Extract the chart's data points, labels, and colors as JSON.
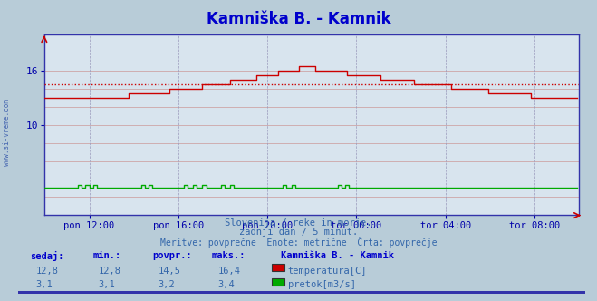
{
  "title": "Kamniška B. - Kamnik",
  "title_color": "#0000cc",
  "fig_bg_color": "#b8ccd8",
  "plot_bg_color": "#d8e4ee",
  "grid_color_h": "#cc9999",
  "grid_color_v": "#9999bb",
  "xlim": [
    0,
    288
  ],
  "ylim": [
    0,
    20
  ],
  "ytick_vals": [
    10,
    16
  ],
  "ytick_labels": [
    "10",
    "16"
  ],
  "xtick_positions": [
    24,
    72,
    120,
    168,
    216,
    264
  ],
  "xtick_labels": [
    "pon 12:00",
    "pon 16:00",
    "pon 20:00",
    "tor 00:00",
    "tor 04:00",
    "tor 08:00"
  ],
  "temp_avg": 14.5,
  "temp_avg_line_color": "#cc0000",
  "temp_line_color": "#cc0000",
  "flow_line_color": "#00aa00",
  "watermark": "www.si-vreme.com",
  "subtitle1": "Slovenija / reke in morje.",
  "subtitle2": "zadnji dan / 5 minut.",
  "subtitle3": "Meritve: povprečne  Enote: metrične  Črta: povprečje",
  "legend_title": "Kamniška B. - Kamnik",
  "stat_headers": [
    "sedaj:",
    "min.:",
    "povpr.:",
    "maks.:"
  ],
  "temp_stats": [
    "12,8",
    "12,8",
    "14,5",
    "16,4"
  ],
  "flow_stats": [
    "3,1",
    "3,1",
    "3,2",
    "3,4"
  ],
  "temp_legend": "temperatura[C]",
  "flow_legend": "pretok[m3/s]"
}
